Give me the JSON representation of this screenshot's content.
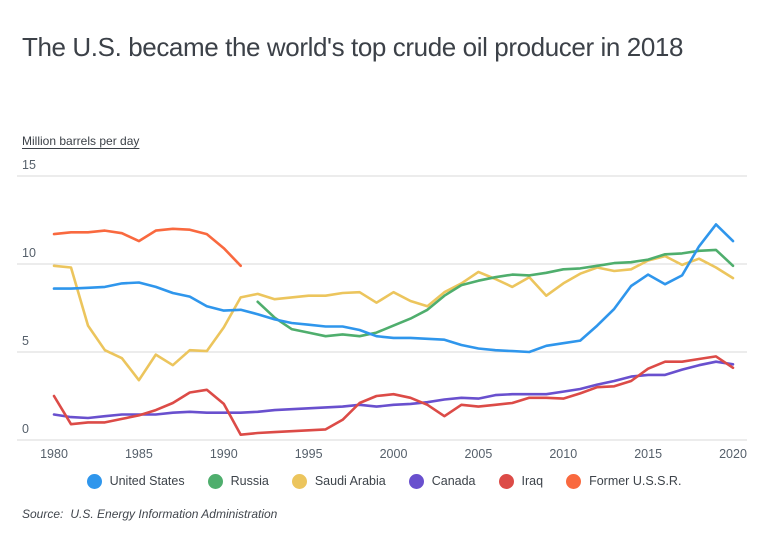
{
  "title": "The U.S. became the world's top crude oil producer in 2018",
  "axis_label": "Million barrels per day",
  "source": {
    "prefix": "Source:",
    "text": "U.S. Energy Information Administration"
  },
  "chart_data": {
    "type": "line",
    "title": "The U.S. became the world's top crude oil producer in 2018",
    "ylabel": "Million barrels per day",
    "xlabel": "",
    "xlim": [
      1980,
      2020
    ],
    "ylim": [
      0,
      15
    ],
    "x_ticks": [
      1980,
      1985,
      1990,
      1995,
      2000,
      2005,
      2010,
      2015,
      2020
    ],
    "y_ticks": [
      0,
      5,
      10,
      15
    ],
    "grid": "horizontal",
    "grid_color": "#d8d8d8",
    "legend_position": "bottom",
    "series": [
      {
        "name": "United States",
        "color": "#2f96ec",
        "x_start": 1980,
        "z": 6,
        "values": [
          8.6,
          8.6,
          8.65,
          8.7,
          8.9,
          8.95,
          8.7,
          8.35,
          8.15,
          7.6,
          7.35,
          7.4,
          7.15,
          6.85,
          6.65,
          6.55,
          6.45,
          6.45,
          6.25,
          5.9,
          5.8,
          5.8,
          5.75,
          5.7,
          5.4,
          5.2,
          5.1,
          5.05,
          5.0,
          5.35,
          5.5,
          5.65,
          6.5,
          7.45,
          8.75,
          9.4,
          8.85,
          9.35,
          11.0,
          12.25,
          11.3
        ]
      },
      {
        "name": "Russia",
        "color": "#4fae6d",
        "x_start": 1992,
        "z": 5,
        "values": [
          7.85,
          6.95,
          6.3,
          6.1,
          5.9,
          6.0,
          5.9,
          6.1,
          6.5,
          6.9,
          7.4,
          8.2,
          8.8,
          9.05,
          9.25,
          9.4,
          9.35,
          9.5,
          9.7,
          9.75,
          9.9,
          10.05,
          10.1,
          10.25,
          10.55,
          10.6,
          10.75,
          10.8,
          9.9
        ]
      },
      {
        "name": "Saudi Arabia",
        "color": "#ecc55d",
        "x_start": 1980,
        "z": 3,
        "values": [
          9.9,
          9.8,
          6.5,
          5.1,
          4.65,
          3.4,
          4.85,
          4.25,
          5.1,
          5.05,
          6.4,
          8.1,
          8.3,
          8.0,
          8.1,
          8.2,
          8.2,
          8.35,
          8.4,
          7.8,
          8.4,
          7.9,
          7.6,
          8.4,
          8.9,
          9.55,
          9.15,
          8.7,
          9.25,
          8.2,
          8.9,
          9.45,
          9.8,
          9.6,
          9.7,
          10.2,
          10.45,
          9.95,
          10.3,
          9.8,
          9.2
        ]
      },
      {
        "name": "Canada",
        "color": "#6950ce",
        "x_start": 1980,
        "z": 2,
        "values": [
          1.45,
          1.3,
          1.25,
          1.35,
          1.45,
          1.45,
          1.45,
          1.55,
          1.6,
          1.55,
          1.55,
          1.55,
          1.6,
          1.7,
          1.75,
          1.8,
          1.85,
          1.9,
          2.0,
          1.9,
          2.0,
          2.05,
          2.15,
          2.3,
          2.4,
          2.35,
          2.55,
          2.6,
          2.6,
          2.6,
          2.75,
          2.9,
          3.15,
          3.35,
          3.6,
          3.7,
          3.7,
          4.0,
          4.25,
          4.45,
          4.3
        ]
      },
      {
        "name": "Iraq",
        "color": "#dc4b47",
        "x_start": 1980,
        "z": 4,
        "values": [
          2.5,
          0.9,
          1.0,
          1.0,
          1.2,
          1.4,
          1.7,
          2.1,
          2.7,
          2.85,
          2.05,
          0.3,
          0.4,
          0.45,
          0.5,
          0.55,
          0.6,
          1.15,
          2.1,
          2.5,
          2.6,
          2.4,
          2.0,
          1.35,
          2.0,
          1.9,
          2.0,
          2.1,
          2.4,
          2.4,
          2.35,
          2.65,
          3.0,
          3.05,
          3.35,
          4.05,
          4.45,
          4.45,
          4.6,
          4.75,
          4.1
        ]
      },
      {
        "name": "Former U.S.S.R.",
        "color": "#f9693f",
        "x_start": 1980,
        "z": 1,
        "values": [
          11.7,
          11.8,
          11.8,
          11.9,
          11.75,
          11.3,
          11.9,
          12.0,
          11.95,
          11.7,
          10.9,
          9.9
        ]
      }
    ]
  }
}
